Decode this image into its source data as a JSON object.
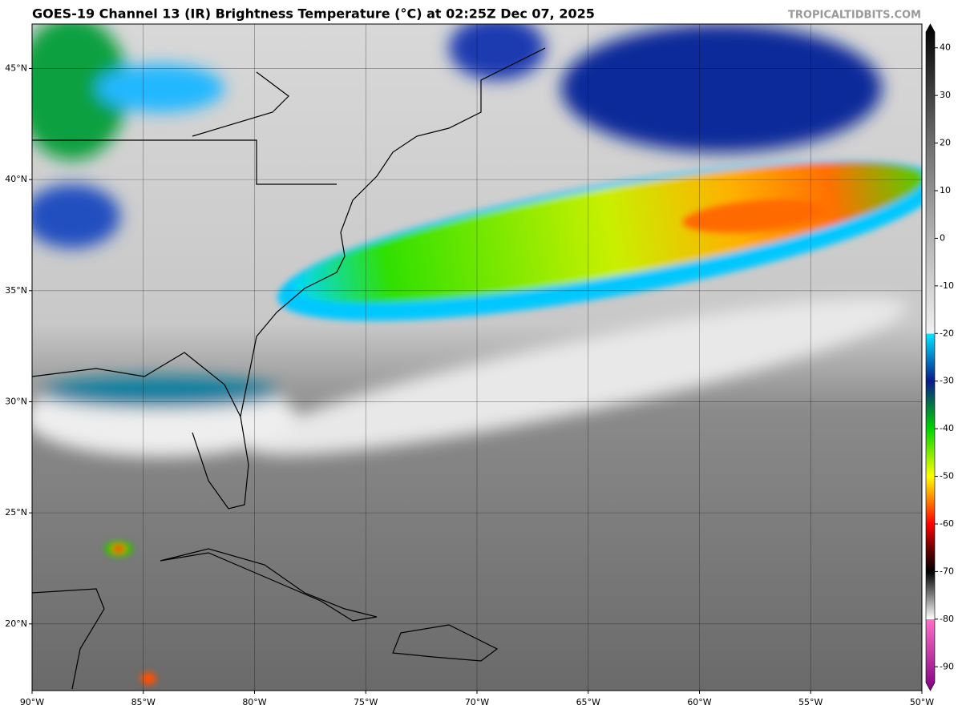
{
  "map": {
    "title": "GOES-19 Channel 13 (IR) Brightness Temperature (°C) at 02:25Z Dec 07, 2025",
    "credit": "TROPICALTIDBITS.COM",
    "xlim": [
      -90,
      -50
    ],
    "ylim": [
      17,
      47
    ],
    "lon_ticks": [
      {
        "value": -90,
        "label": "90°W"
      },
      {
        "value": -85,
        "label": "85°W"
      },
      {
        "value": -80,
        "label": "80°W"
      },
      {
        "value": -75,
        "label": "75°W"
      },
      {
        "value": -70,
        "label": "70°W"
      },
      {
        "value": -65,
        "label": "65°W"
      },
      {
        "value": -60,
        "label": "60°W"
      },
      {
        "value": -55,
        "label": "55°W"
      },
      {
        "value": -50,
        "label": "50°W"
      }
    ],
    "lat_ticks": [
      {
        "value": 20,
        "label": "20°N"
      },
      {
        "value": 25,
        "label": "25°N"
      },
      {
        "value": 30,
        "label": "30°N"
      },
      {
        "value": 35,
        "label": "35°N"
      },
      {
        "value": 40,
        "label": "40°N"
      },
      {
        "value": 45,
        "label": "45°N"
      }
    ],
    "colorbar": {
      "lim": [
        -95,
        45
      ],
      "ticks": [
        40,
        30,
        20,
        10,
        0,
        -10,
        -20,
        -30,
        -40,
        -50,
        -60,
        -70,
        -80,
        -90
      ],
      "colormap": [
        {
          "value": 45,
          "color": "#000000"
        },
        {
          "value": 20,
          "color": "#6e6e6e"
        },
        {
          "value": 0,
          "color": "#b4b4b4"
        },
        {
          "value": -20,
          "color": "#f0f0f0"
        },
        {
          "value": -20,
          "color": "#00e8ff"
        },
        {
          "value": -30,
          "color": "#0a1a8c"
        },
        {
          "value": -40,
          "color": "#00d400"
        },
        {
          "value": -50,
          "color": "#ffff00"
        },
        {
          "value": -60,
          "color": "#ff0000"
        },
        {
          "value": -65,
          "color": "#6e0000"
        },
        {
          "value": -70,
          "color": "#000000"
        },
        {
          "value": -80,
          "color": "#ffffff"
        },
        {
          "value": -80,
          "color": "#ff70c8"
        },
        {
          "value": -95,
          "color": "#800080"
        }
      ]
    }
  }
}
